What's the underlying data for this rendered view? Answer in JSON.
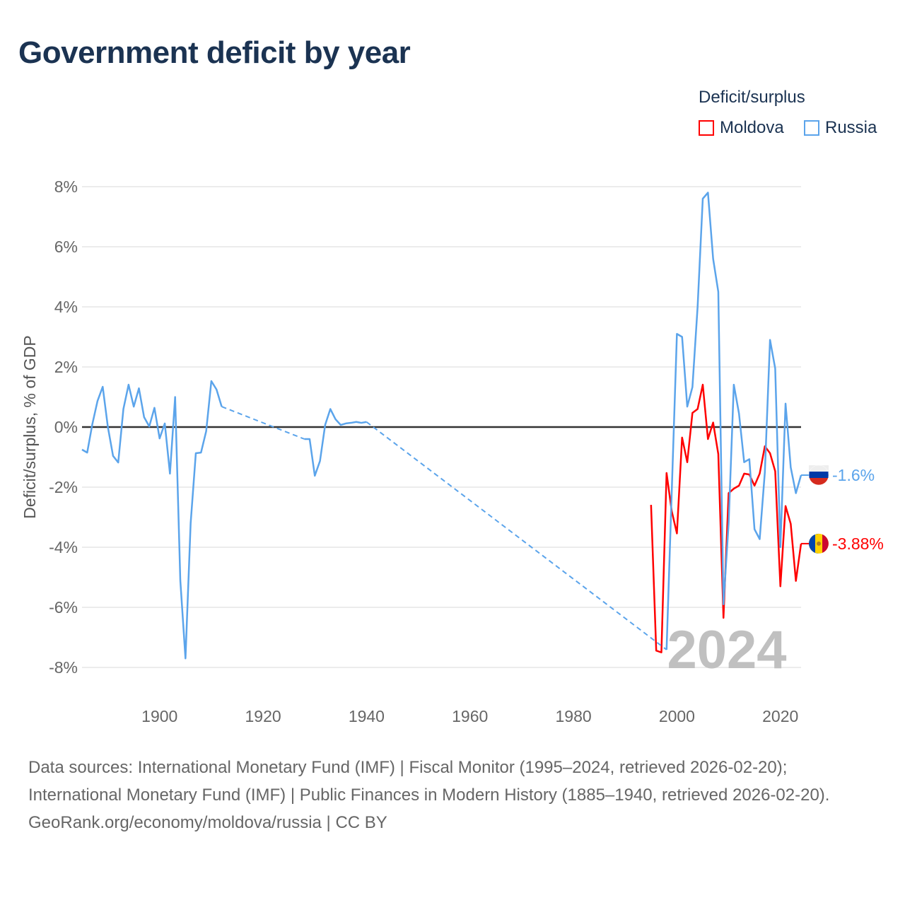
{
  "title": "Government deficit by year",
  "legend": {
    "title": "Deficit/surplus",
    "items": [
      {
        "name": "Moldova",
        "color": "#ff0000"
      },
      {
        "name": "Russia",
        "color": "#5ba4eb"
      }
    ]
  },
  "chart_data": {
    "type": "line",
    "title": "Government deficit by year",
    "xlabel": "",
    "ylabel": "Deficit/surplus, % of GDP",
    "xlim": [
      1885,
      2024
    ],
    "ylim": [
      -8,
      8
    ],
    "x_ticks": [
      1900,
      1920,
      1940,
      1960,
      1980,
      2000,
      2020
    ],
    "y_ticks": [
      {
        "v": 8,
        "label": "8%"
      },
      {
        "v": 6,
        "label": "6%"
      },
      {
        "v": 4,
        "label": "4%"
      },
      {
        "v": 2,
        "label": "2%"
      },
      {
        "v": 0,
        "label": "0%"
      },
      {
        "v": -2,
        "label": "-2%"
      },
      {
        "v": -4,
        "label": "-4%"
      },
      {
        "v": -6,
        "label": "-6%"
      },
      {
        "v": -8,
        "label": "-8%"
      }
    ],
    "grid": true,
    "year_label": "2024",
    "series": [
      {
        "name": "Russia",
        "color": "#5ba4eb",
        "end_label": "-1.6%",
        "points": [
          [
            1885,
            -0.75
          ],
          [
            1886,
            -0.85
          ],
          [
            1887,
            0.1
          ],
          [
            1888,
            0.87
          ],
          [
            1889,
            1.34
          ],
          [
            1890,
            0
          ],
          [
            1891,
            -0.96
          ],
          [
            1892,
            -1.18
          ],
          [
            1893,
            0.6
          ],
          [
            1894,
            1.41
          ],
          [
            1895,
            0.68
          ],
          [
            1896,
            1.29
          ],
          [
            1897,
            0.33
          ],
          [
            1898,
            0.02
          ],
          [
            1899,
            0.64
          ],
          [
            1900,
            -0.38
          ],
          [
            1901,
            0.12
          ],
          [
            1902,
            -1.55
          ],
          [
            1903,
            1.0
          ],
          [
            1904,
            -5.1
          ],
          [
            1905,
            -7.7
          ],
          [
            1906,
            -3.2
          ],
          [
            1907,
            -0.87
          ],
          [
            1908,
            -0.85
          ],
          [
            1909,
            -0.14
          ],
          [
            1910,
            1.53
          ],
          [
            1911,
            1.25
          ],
          [
            1912,
            0.68
          ],
          [
            1928,
            -0.4
          ],
          [
            1929,
            -0.4
          ],
          [
            1930,
            -1.62
          ],
          [
            1931,
            -1.13
          ],
          [
            1932,
            0.07
          ],
          [
            1933,
            0.6
          ],
          [
            1934,
            0.26
          ],
          [
            1935,
            0.07
          ],
          [
            1936,
            0.12
          ],
          [
            1937,
            0.14
          ],
          [
            1938,
            0.17
          ],
          [
            1939,
            0.14
          ],
          [
            1940,
            0.17
          ],
          [
            1998,
            -7.41
          ],
          [
            2000,
            3.1
          ],
          [
            2001,
            3.0
          ],
          [
            2002,
            0.68
          ],
          [
            2003,
            1.33
          ],
          [
            2004,
            4.0
          ],
          [
            2005,
            7.6
          ],
          [
            2006,
            7.8
          ],
          [
            2007,
            5.6
          ],
          [
            2008,
            4.5
          ],
          [
            2009,
            -5.9
          ],
          [
            2010,
            -3.2
          ],
          [
            2011,
            1.41
          ],
          [
            2012,
            0.45
          ],
          [
            2013,
            -1.17
          ],
          [
            2014,
            -1.07
          ],
          [
            2015,
            -3.4
          ],
          [
            2016,
            -3.73
          ],
          [
            2017,
            -1.5
          ],
          [
            2018,
            2.9
          ],
          [
            2019,
            1.95
          ],
          [
            2020,
            -4.0
          ],
          [
            2021,
            0.78
          ],
          [
            2022,
            -1.34
          ],
          [
            2023,
            -2.2
          ],
          [
            2024,
            -1.6
          ]
        ]
      },
      {
        "name": "Moldova",
        "color": "#ff0000",
        "end_label": "-3.88%",
        "points": [
          [
            1995,
            -2.59
          ],
          [
            1996,
            -7.44
          ],
          [
            1997,
            -7.5
          ],
          [
            1998,
            -1.53
          ],
          [
            1999,
            -2.8
          ],
          [
            2000,
            -3.54
          ],
          [
            2001,
            -0.35
          ],
          [
            2002,
            -1.17
          ],
          [
            2003,
            0.47
          ],
          [
            2004,
            0.6
          ],
          [
            2005,
            1.41
          ],
          [
            2006,
            -0.4
          ],
          [
            2007,
            0.15
          ],
          [
            2008,
            -0.9
          ],
          [
            2009,
            -6.35
          ],
          [
            2010,
            -2.2
          ],
          [
            2011,
            -2.05
          ],
          [
            2012,
            -1.95
          ],
          [
            2013,
            -1.55
          ],
          [
            2014,
            -1.58
          ],
          [
            2015,
            -1.95
          ],
          [
            2016,
            -1.55
          ],
          [
            2017,
            -0.64
          ],
          [
            2018,
            -0.87
          ],
          [
            2019,
            -1.47
          ],
          [
            2020,
            -5.3
          ],
          [
            2021,
            -2.63
          ],
          [
            2022,
            -3.22
          ],
          [
            2023,
            -5.12
          ],
          [
            2024,
            -3.88
          ]
        ]
      }
    ]
  },
  "sources": {
    "line1": "Data sources: International Monetary Fund (IMF) | Fiscal Monitor (1995–2024, retrieved 2026-02-20); International Monetary Fund (IMF) | Public Finances in Modern History (1885–1940, retrieved 2026-02-20).",
    "line2": "GeoRank.org/economy/moldova/russia | CC BY"
  }
}
